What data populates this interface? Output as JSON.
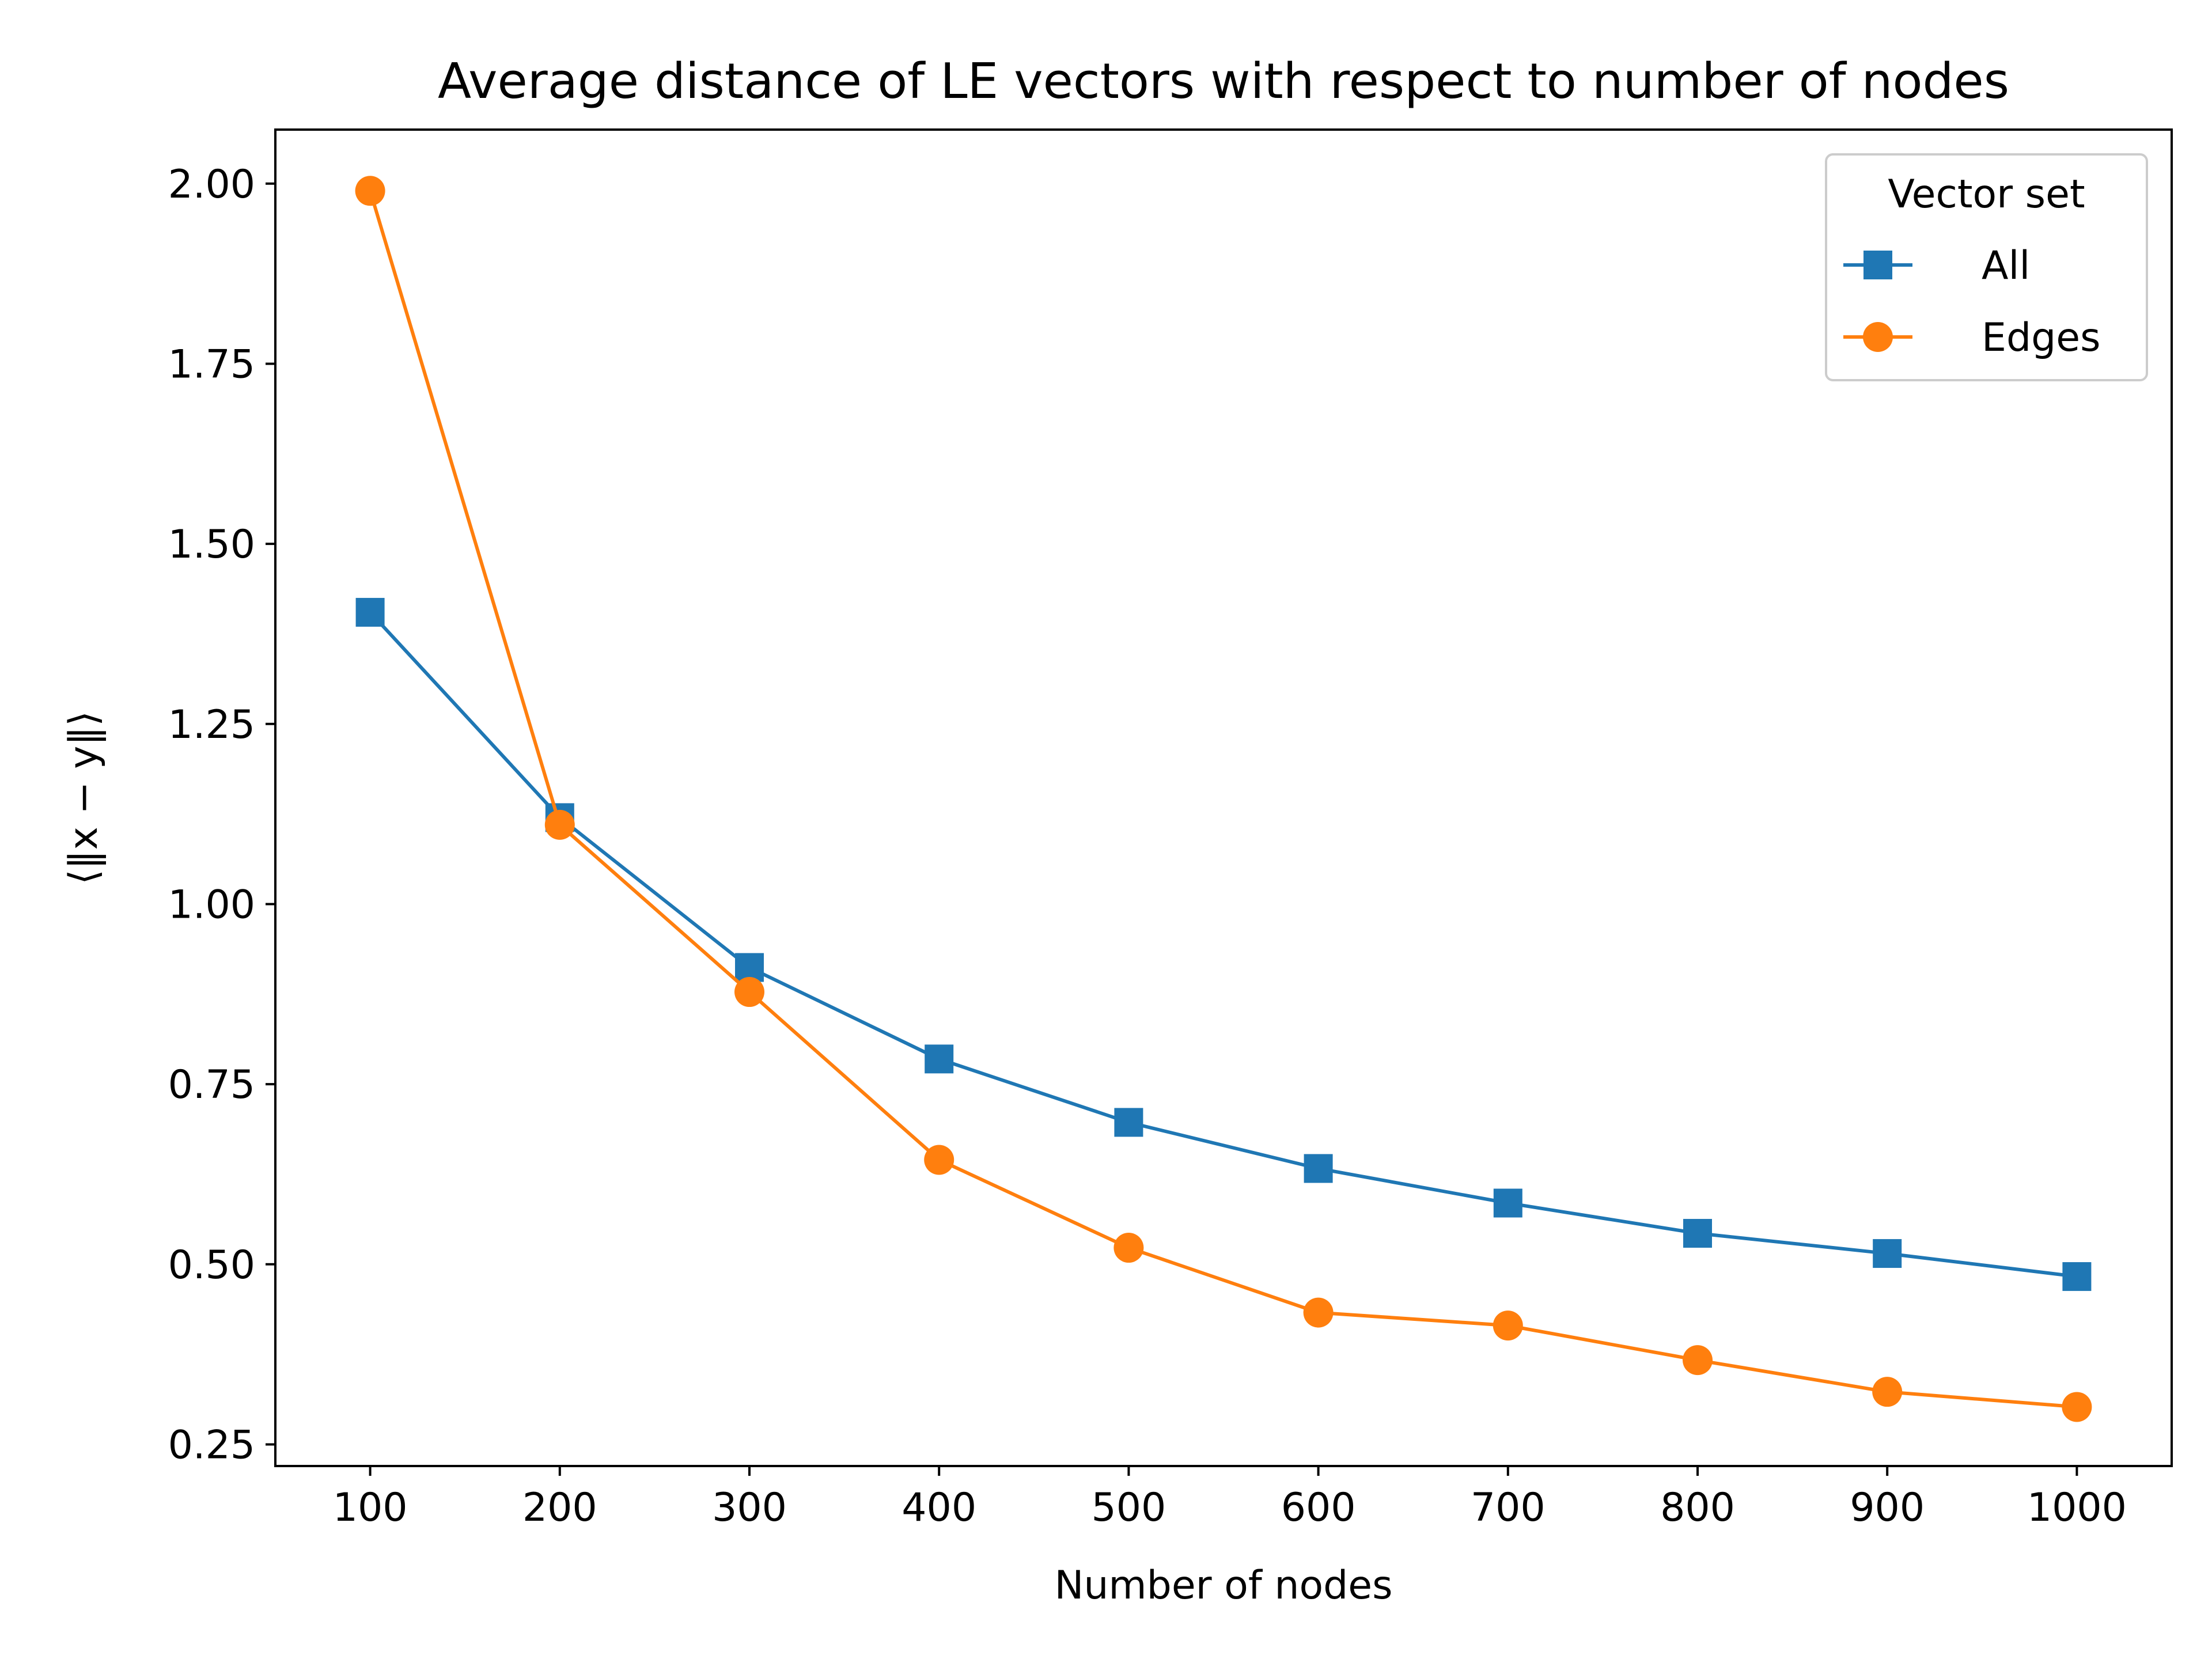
{
  "chart_data": {
    "type": "line",
    "title": "Average distance of LE vectors with respect to number of nodes",
    "xlabel": "Number of nodes",
    "ylabel": "⟨‖x − y‖⟩",
    "x": [
      100,
      200,
      300,
      400,
      500,
      600,
      700,
      800,
      900,
      1000
    ],
    "xlim": [
      50,
      1050
    ],
    "ylim": [
      0.22,
      2.075
    ],
    "xticks": [
      100,
      200,
      300,
      400,
      500,
      600,
      700,
      800,
      900,
      1000
    ],
    "xtick_labels": [
      "100",
      "200",
      "300",
      "400",
      "500",
      "600",
      "700",
      "800",
      "900",
      "1000"
    ],
    "yticks": [
      0.25,
      0.5,
      0.75,
      1.0,
      1.25,
      1.5,
      1.75,
      2.0
    ],
    "ytick_labels": [
      "0.25",
      "0.50",
      "0.75",
      "1.00",
      "1.25",
      "1.50",
      "1.75",
      "2.00"
    ],
    "grid": false,
    "legend": {
      "title": "Vector set",
      "placement": "top-right"
    },
    "series": [
      {
        "name": "All",
        "color": "#1f77b4",
        "marker": "square",
        "values": [
          1.405,
          1.12,
          0.912,
          0.785,
          0.697,
          0.633,
          0.585,
          0.543,
          0.515,
          0.483
        ]
      },
      {
        "name": "Edges",
        "color": "#ff7f0e",
        "marker": "circle",
        "values": [
          1.99,
          1.11,
          0.878,
          0.645,
          0.523,
          0.433,
          0.415,
          0.367,
          0.323,
          0.302
        ]
      }
    ]
  }
}
